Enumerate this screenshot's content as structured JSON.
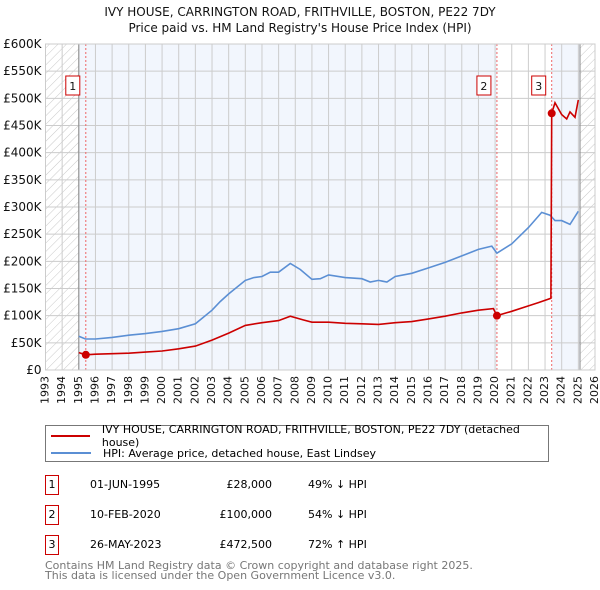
{
  "chart_data": {
    "type": "line",
    "title": "IVY HOUSE, CARRINGTON ROAD, FRITHVILLE, BOSTON, PE22 7DY",
    "subtitle": "Price paid vs. HM Land Registry's House Price Index (HPI)",
    "xlim": [
      1993,
      2026
    ],
    "ylim": [
      0,
      600000
    ],
    "x_ticks": [
      "1993",
      "1994",
      "1995",
      "1996",
      "1997",
      "1998",
      "1999",
      "2000",
      "2001",
      "2002",
      "2003",
      "2004",
      "2005",
      "2006",
      "2007",
      "2008",
      "2009",
      "2010",
      "2011",
      "2012",
      "2013",
      "2014",
      "2015",
      "2016",
      "2017",
      "2018",
      "2019",
      "2020",
      "2021",
      "2022",
      "2023",
      "2024",
      "2025",
      "2026"
    ],
    "y_ticks": [
      {
        "v": 0,
        "label": "£0"
      },
      {
        "v": 50000,
        "label": "£50K"
      },
      {
        "v": 100000,
        "label": "£100K"
      },
      {
        "v": 150000,
        "label": "£150K"
      },
      {
        "v": 200000,
        "label": "£200K"
      },
      {
        "v": 250000,
        "label": "£250K"
      },
      {
        "v": 300000,
        "label": "£300K"
      },
      {
        "v": 350000,
        "label": "£350K"
      },
      {
        "v": 400000,
        "label": "£400K"
      },
      {
        "v": 450000,
        "label": "£450K"
      },
      {
        "v": 500000,
        "label": "£500K"
      },
      {
        "v": 550000,
        "label": "£550K"
      },
      {
        "v": 600000,
        "label": "£600K"
      }
    ],
    "grid": true,
    "series": [
      {
        "name": "IVY HOUSE, CARRINGTON ROAD, FRITHVILLE, BOSTON, PE22 7DY (detached house)",
        "color": "#cc0000",
        "x": [
          1995.0,
          1995.42,
          1996,
          1997,
          1998,
          1999,
          2000,
          2001,
          2002,
          2003,
          2004,
          2005,
          2006,
          2007,
          2007.7,
          2008.5,
          2009,
          2010,
          2011,
          2012,
          2013,
          2014,
          2015,
          2016,
          2017,
          2018,
          2019,
          2019.9,
          2020.11,
          2021,
          2022,
          2022.6,
          2023.35,
          2023.4,
          2023.6,
          2024,
          2024.3,
          2024.5,
          2024.8,
          2025.0
        ],
        "y": [
          32000,
          28000,
          29000,
          30000,
          31000,
          33000,
          35000,
          39000,
          44000,
          55000,
          68000,
          82000,
          87000,
          91000,
          99000,
          92000,
          88000,
          88000,
          86000,
          85000,
          84000,
          87000,
          89000,
          94000,
          99000,
          105000,
          110000,
          113000,
          100000,
          108000,
          118000,
          124000,
          132000,
          472500,
          492000,
          470000,
          462000,
          475000,
          465000,
          497000
        ]
      },
      {
        "name": "HPI: Average price, detached house, East Lindsey",
        "color": "#5b8fd4",
        "x": [
          1995.0,
          1995.4,
          1996,
          1997,
          1998,
          1999,
          2000,
          2001,
          2002,
          2003,
          2003.5,
          2004,
          2005,
          2005.5,
          2006,
          2006.5,
          2007,
          2007.7,
          2008.3,
          2009,
          2009.5,
          2010,
          2011,
          2012,
          2012.5,
          2013,
          2013.5,
          2014,
          2015,
          2016,
          2017,
          2018,
          2019,
          2019.8,
          2020.11,
          2021,
          2022,
          2022.8,
          2023.3,
          2023.6,
          2024,
          2024.5,
          2025.0
        ],
        "y": [
          62000,
          57000,
          57000,
          60000,
          64000,
          67000,
          71000,
          76000,
          85000,
          110000,
          126000,
          140000,
          165000,
          170000,
          172000,
          180000,
          180000,
          196000,
          185000,
          167000,
          168000,
          175000,
          170000,
          168000,
          162000,
          165000,
          162000,
          172000,
          178000,
          188000,
          198000,
          210000,
          222000,
          228000,
          215000,
          232000,
          262000,
          290000,
          285000,
          275000,
          275000,
          268000,
          292000
        ]
      }
    ],
    "sales": [
      {
        "n": "1",
        "x": 1995.42,
        "y": 28000
      },
      {
        "n": "2",
        "x": 2020.11,
        "y": 100000
      },
      {
        "n": "3",
        "x": 2023.4,
        "y": 472500
      }
    ]
  },
  "legend": {
    "property": "IVY HOUSE, CARRINGTON ROAD, FRITHVILLE, BOSTON, PE22 7DY (detached house)",
    "hpi": "HPI: Average price, detached house, East Lindsey"
  },
  "transactions": [
    {
      "n": "1",
      "date": "01-JUN-1995",
      "price": "£28,000",
      "hpi": "49% ↓ HPI"
    },
    {
      "n": "2",
      "date": "10-FEB-2020",
      "price": "£100,000",
      "hpi": "54% ↓ HPI"
    },
    {
      "n": "3",
      "date": "26-MAY-2023",
      "price": "£472,500",
      "hpi": "72% ↑ HPI"
    }
  ],
  "footer": {
    "line1": "Contains HM Land Registry data © Crown copyright and database right 2025.",
    "line2": "This data is licensed under the Open Government Licence v3.0."
  }
}
